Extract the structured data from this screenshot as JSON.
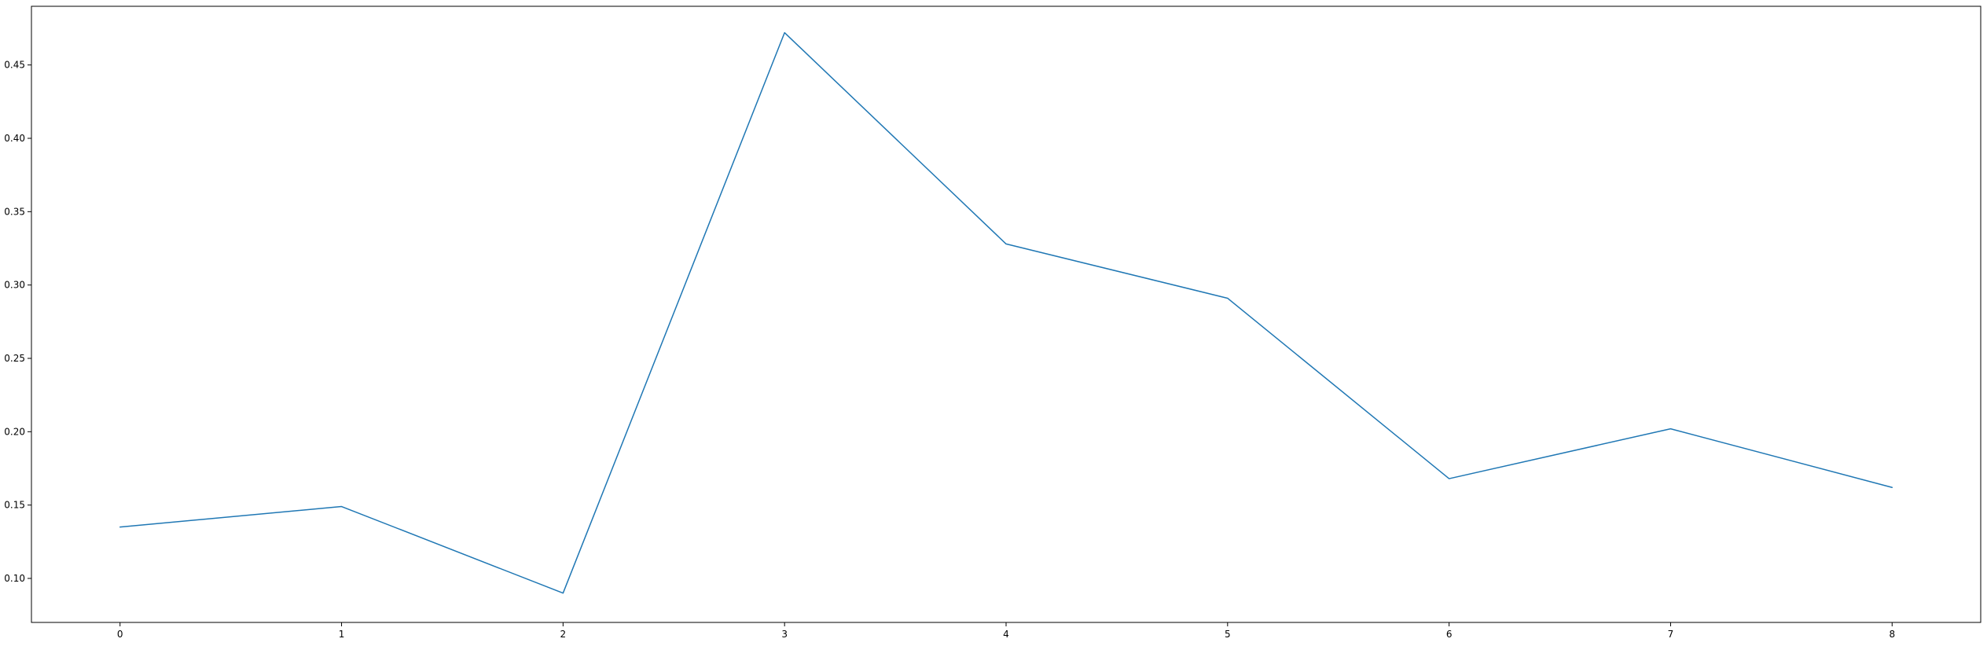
{
  "chart_data": {
    "type": "line",
    "title": "",
    "xlabel": "",
    "ylabel": "",
    "xlim": [
      -0.4,
      8.4
    ],
    "ylim": [
      0.07,
      0.49
    ],
    "x_ticks": [
      0,
      1,
      2,
      3,
      4,
      5,
      6,
      7,
      8
    ],
    "y_ticks": [
      0.1,
      0.15,
      0.2,
      0.25,
      0.3,
      0.35,
      0.4,
      0.45
    ],
    "x_tick_labels": [
      "0",
      "1",
      "2",
      "3",
      "4",
      "5",
      "6",
      "7",
      "8"
    ],
    "y_tick_labels": [
      "0.10",
      "0.15",
      "0.20",
      "0.25",
      "0.30",
      "0.35",
      "0.40",
      "0.45"
    ],
    "grid": false,
    "legend": "none",
    "series": [
      {
        "color": "#1f77b4",
        "x": [
          0,
          1,
          2,
          3,
          4,
          5,
          6,
          7,
          8
        ],
        "values": [
          0.135,
          0.149,
          0.09,
          0.472,
          0.328,
          0.291,
          0.168,
          0.202,
          0.162
        ]
      }
    ]
  }
}
